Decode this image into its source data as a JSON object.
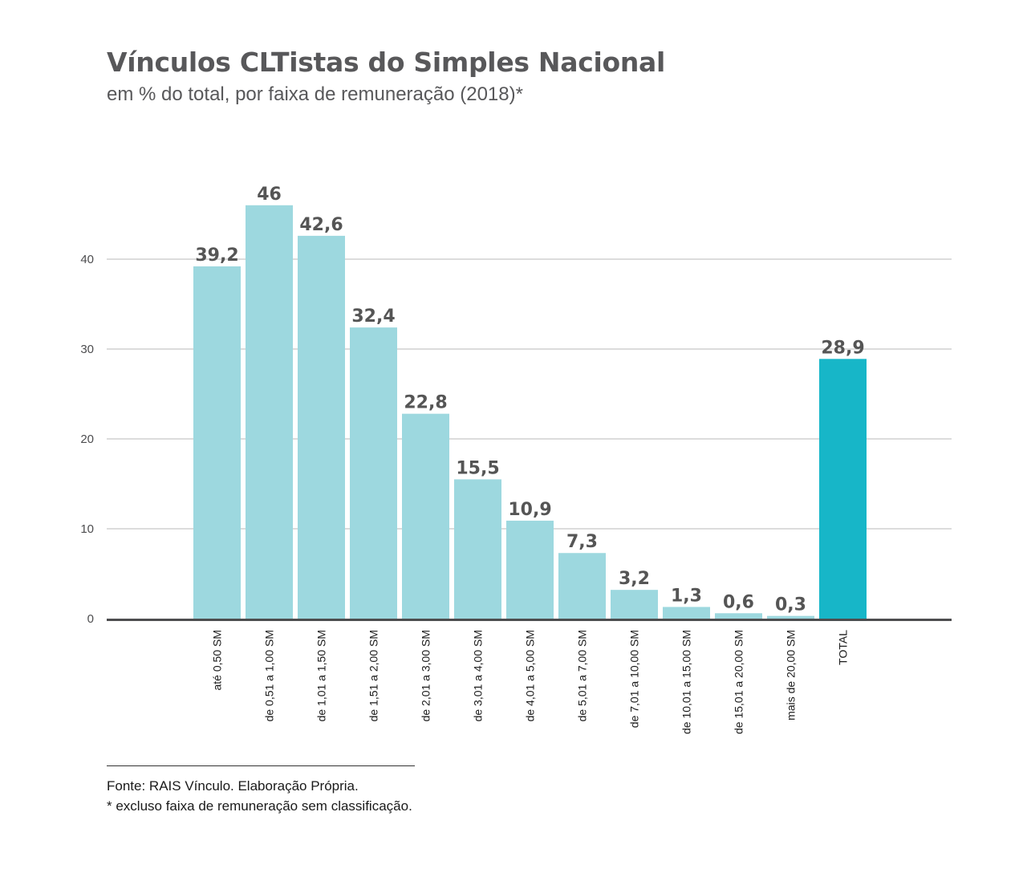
{
  "title": "Vínculos CLTistas do Simples Nacional",
  "subtitle": "em % do total, por faixa de remuneração (2018)*",
  "footer": {
    "source": "Fonte: RAIS Vínculo. Elaboração Própria.",
    "note": "* excluso faixa de remuneração sem classificação."
  },
  "colors": {
    "bar": "#9dd8df",
    "total_bar": "#17b6c8",
    "grid": "#b8b8b8",
    "axis": "#4d4d4f",
    "value_label": "#555555"
  },
  "chart_data": {
    "type": "bar",
    "title": "Vínculos CLTistas do Simples Nacional",
    "subtitle": "em % do total, por faixa de remuneração (2018)*",
    "xlabel": "",
    "ylabel": "",
    "ylim": [
      0,
      46
    ],
    "yticks": [
      0,
      10,
      20,
      30,
      40
    ],
    "grid": true,
    "categories": [
      "até 0,50 SM",
      "de 0,51 a 1,00 SM",
      "de 1,01 a 1,50 SM",
      "de 1,51 a 2,00 SM",
      "de 2,01 a 3,00 SM",
      "de 3,01 a 4,00 SM",
      "de 4,01 a 5,00 SM",
      "de 5,01 a 7,00 SM",
      "de 7,01 a 10,00 SM",
      "de 10,01 a 15,00 SM",
      "de 15,01 a 20,00 SM",
      "mais de 20,00 SM",
      "TOTAL"
    ],
    "values": [
      39.2,
      46,
      42.6,
      32.4,
      22.8,
      15.5,
      10.9,
      7.3,
      3.2,
      1.3,
      0.6,
      0.3,
      28.9
    ],
    "value_labels": [
      "39,2",
      "46",
      "42,6",
      "32,4",
      "22,8",
      "15,5",
      "10,9",
      "7,3",
      "3,2",
      "1,3",
      "0,6",
      "0,3",
      "28,9"
    ],
    "highlight_category": "TOTAL"
  }
}
